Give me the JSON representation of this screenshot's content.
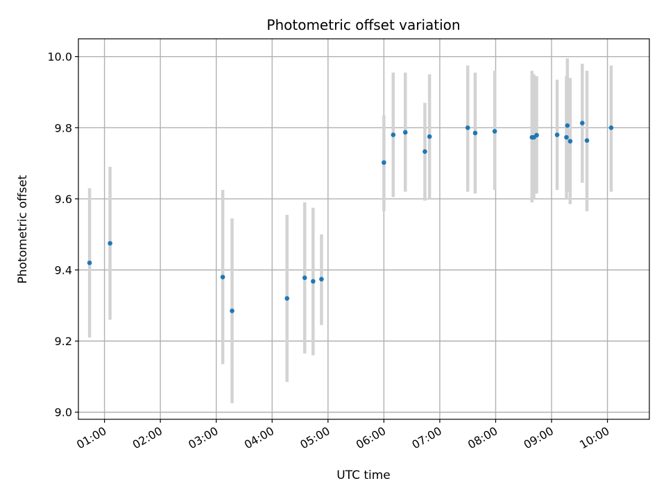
{
  "chart_data": {
    "type": "scatter",
    "title": "Photometric offset variation",
    "xlabel": "UTC time",
    "ylabel": "Photometric offset",
    "x_tick_labels": [
      "01:00",
      "02:00",
      "03:00",
      "04:00",
      "05:00",
      "06:00",
      "07:00",
      "08:00",
      "09:00",
      "10:00"
    ],
    "y_tick_labels": [
      "9.0",
      "9.2",
      "9.4",
      "9.6",
      "9.8",
      "10.0"
    ],
    "xlim": [
      "00:32",
      "10:45"
    ],
    "ylim": [
      8.98,
      10.05
    ],
    "grid": true,
    "point_color": "#1f77b4",
    "errorbar_color": "#d3d3d3",
    "points": [
      {
        "time": "00:44",
        "y": 9.42,
        "err_low": 9.21,
        "err_high": 9.63
      },
      {
        "time": "01:06",
        "y": 9.475,
        "err_low": 9.26,
        "err_high": 9.69
      },
      {
        "time": "03:07",
        "y": 9.38,
        "err_low": 9.135,
        "err_low_note": "",
        "err_high": 9.625
      },
      {
        "time": "03:17",
        "y": 9.285,
        "err_low": 9.025,
        "err_high": 9.545
      },
      {
        "time": "04:16",
        "y": 9.32,
        "err_low": 9.085,
        "err_high": 9.555
      },
      {
        "time": "04:35",
        "y": 9.378,
        "err_low": 9.165,
        "err_high": 9.59
      },
      {
        "time": "04:44",
        "y": 9.368,
        "err_low": 9.16,
        "err_high": 9.575
      },
      {
        "time": "04:53",
        "y": 9.374,
        "err_low": 9.245,
        "err_high": 9.5
      },
      {
        "time": "06:00",
        "y": 9.702,
        "err_low": 9.565,
        "err_high": 9.835
      },
      {
        "time": "06:10",
        "y": 9.78,
        "err_low": 9.605,
        "err_high": 9.955
      },
      {
        "time": "06:23",
        "y": 9.787,
        "err_low": 9.62,
        "err_high": 9.955
      },
      {
        "time": "06:44",
        "y": 9.733,
        "err_low": 9.595,
        "err_high": 9.87
      },
      {
        "time": "06:49",
        "y": 9.775,
        "err_low": 9.6,
        "err_high": 9.95
      },
      {
        "time": "07:30",
        "y": 9.8,
        "err_low": 9.62,
        "err_high": 9.975
      },
      {
        "time": "07:38",
        "y": 9.785,
        "err_low": 9.615,
        "err_high": 9.955
      },
      {
        "time": "07:59",
        "y": 9.79,
        "err_low": 9.625,
        "err_high": 9.96
      },
      {
        "time": "08:39",
        "y": 9.773,
        "err_low": 9.59,
        "err_high": 9.96
      },
      {
        "time": "08:41",
        "y": 9.773,
        "err_low": 9.6,
        "err_high": 9.95
      },
      {
        "time": "08:44",
        "y": 9.779,
        "err_low": 9.615,
        "err_high": 9.945
      },
      {
        "time": "09:06",
        "y": 9.78,
        "err_low": 9.625,
        "err_high": 9.935
      },
      {
        "time": "09:16",
        "y": 9.773,
        "err_low": 9.6,
        "err_high": 9.945
      },
      {
        "time": "09:17",
        "y": 9.806,
        "err_low": 9.62,
        "err_high": 9.995
      },
      {
        "time": "09:20",
        "y": 9.762,
        "err_low": 9.585,
        "err_high": 9.94
      },
      {
        "time": "09:33",
        "y": 9.813,
        "err_low": 9.645,
        "err_high": 9.98
      },
      {
        "time": "09:38",
        "y": 9.764,
        "err_low": 9.565,
        "err_high": 9.96
      },
      {
        "time": "10:04",
        "y": 9.8,
        "err_low": 9.62,
        "err_high": 9.975
      }
    ]
  }
}
